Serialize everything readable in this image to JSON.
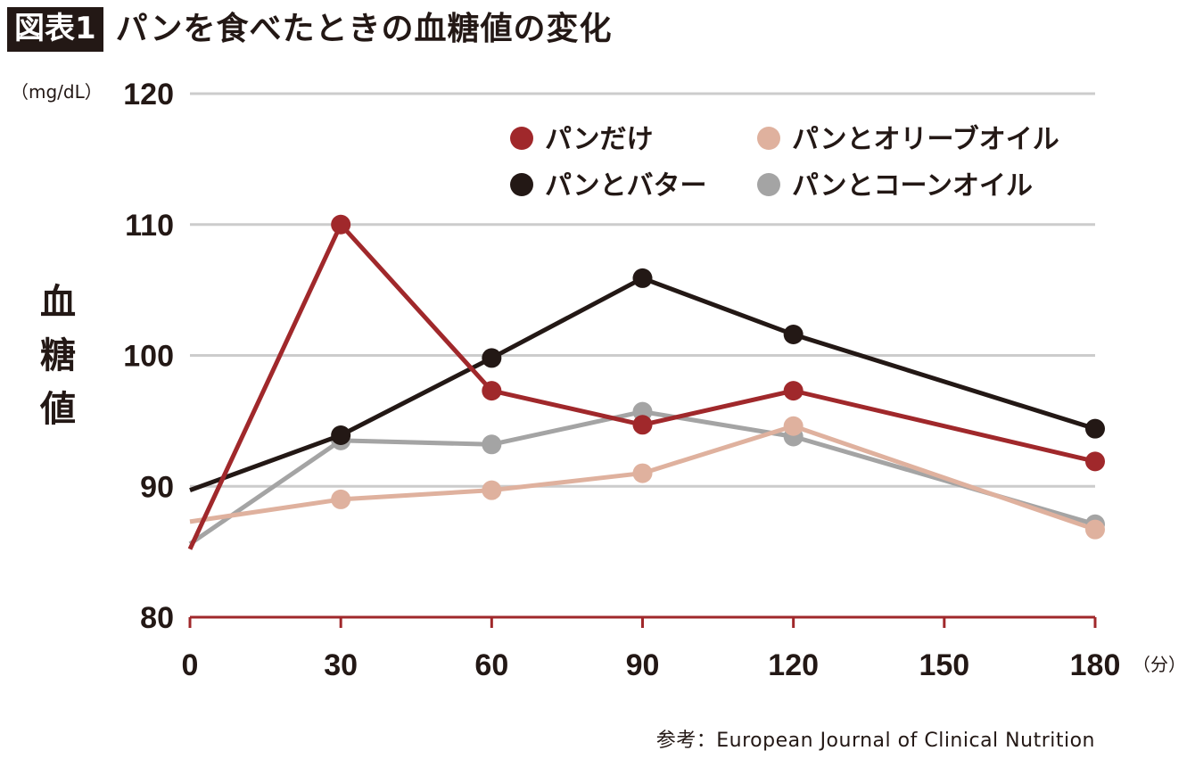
{
  "header": {
    "badge": "図表1",
    "title": "パンを食べたときの血糖値の変化"
  },
  "source": "参考：European Journal of Clinical Nutrition",
  "colors": {
    "grid": "#cccccc",
    "axis": "#a0282b",
    "text": "#231815"
  },
  "chart_data": {
    "type": "line",
    "x": [
      0,
      30,
      60,
      90,
      120,
      180
    ],
    "xticks": [
      "0",
      "30",
      "60",
      "90",
      "120",
      "150",
      "180"
    ],
    "xtick_values": [
      0,
      30,
      60,
      90,
      120,
      150,
      180
    ],
    "yticks": [
      "80",
      "90",
      "100",
      "110",
      "120"
    ],
    "ytick_values": [
      80,
      90,
      100,
      110,
      120
    ],
    "xlim": [
      0,
      180
    ],
    "ylim": [
      80,
      120
    ],
    "ylabel": "血糖値",
    "y_unit": "（mg/dL）",
    "x_unit": "（分）",
    "grid": "horizontal",
    "legend_position": "top-right",
    "series": [
      {
        "name": "パンだけ",
        "color": "#a0282b",
        "values": [
          85.2,
          110.0,
          97.3,
          94.7,
          97.3,
          91.9
        ]
      },
      {
        "name": "パンとオリーブオイル",
        "color": "#dfb19e",
        "values": [
          87.3,
          89.0,
          89.7,
          91.0,
          94.6,
          86.7
        ]
      },
      {
        "name": "パンとバター",
        "color": "#231815",
        "values": [
          89.7,
          93.9,
          99.8,
          105.9,
          101.6,
          94.4
        ]
      },
      {
        "name": "パンとコーンオイル",
        "color": "#a4a4a4",
        "values": [
          85.6,
          93.5,
          93.2,
          95.7,
          93.8,
          87.1
        ]
      }
    ]
  }
}
